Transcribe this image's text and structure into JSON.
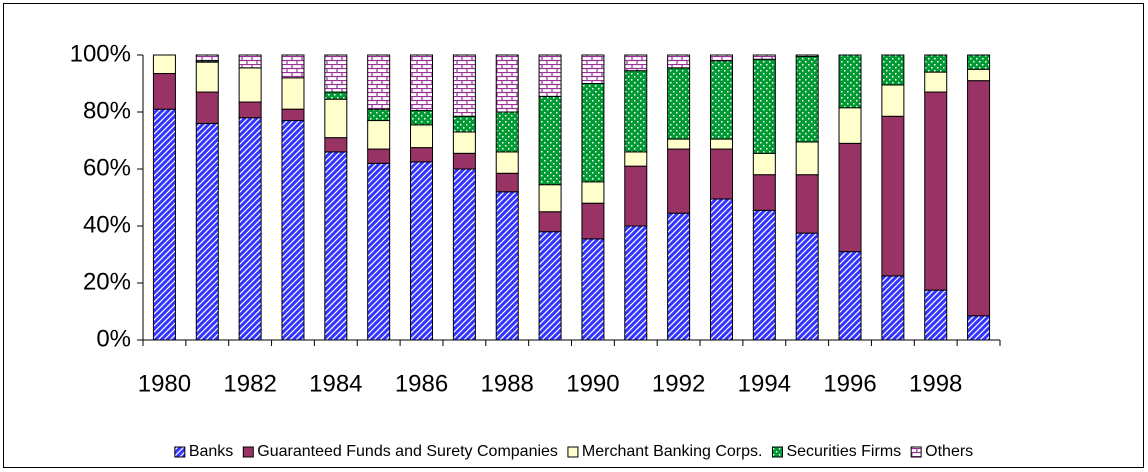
{
  "chart_data": {
    "type": "bar",
    "stacked": true,
    "categories": [
      "1980",
      null,
      "1982",
      null,
      "1984",
      null,
      "1986",
      null,
      "1988",
      null,
      "1990",
      null,
      "1992",
      null,
      "1994",
      null,
      "1996",
      null,
      "1998",
      null
    ],
    "series": [
      {
        "name": "Banks",
        "color": "#3333ff",
        "values": [
          81,
          76,
          78,
          77,
          66,
          62,
          62.5,
          60,
          52,
          38,
          35.5,
          40,
          44.5,
          49.5,
          45.5,
          37.5,
          31,
          22.5,
          17.5,
          8.5
        ]
      },
      {
        "name": "Guaranteed Funds and Surety Companies",
        "color": "#993366",
        "values": [
          12.5,
          11,
          5.5,
          4,
          5,
          5,
          5,
          5.5,
          6.5,
          7,
          12.5,
          21,
          22.5,
          17.5,
          12.5,
          20.5,
          38,
          56,
          69.5,
          82.5
        ]
      },
      {
        "name": "Merchant Banking Corps.",
        "color": "#ffffcc",
        "values": [
          6.5,
          10.5,
          12,
          11,
          13.5,
          10,
          8,
          7.5,
          7.5,
          9.5,
          7.5,
          5,
          3.5,
          3.5,
          7.5,
          11.5,
          12.5,
          11,
          7,
          4
        ]
      },
      {
        "name": "Securities Firms",
        "color": "#009933",
        "values": [
          0,
          0.5,
          0,
          0,
          2.5,
          4,
          5,
          5.5,
          14,
          31,
          34.5,
          28.5,
          25,
          27.5,
          33,
          30,
          18.5,
          10.5,
          6,
          5
        ]
      },
      {
        "name": "Others",
        "color": "#993399",
        "values": [
          0,
          2,
          4.5,
          8,
          13,
          19,
          19.5,
          21.5,
          20,
          14.5,
          10,
          5.5,
          4.5,
          2,
          1.5,
          0.5,
          0,
          0,
          0,
          0
        ]
      }
    ],
    "ylim": [
      0,
      100
    ],
    "yticks": [
      {
        "value": 0,
        "label": "0%"
      },
      {
        "value": 20,
        "label": "20%"
      },
      {
        "value": 40,
        "label": "40%"
      },
      {
        "value": 60,
        "label": "60%"
      },
      {
        "value": 80,
        "label": "80%"
      },
      {
        "value": 100,
        "label": "100%"
      }
    ],
    "legend": "bottom"
  }
}
